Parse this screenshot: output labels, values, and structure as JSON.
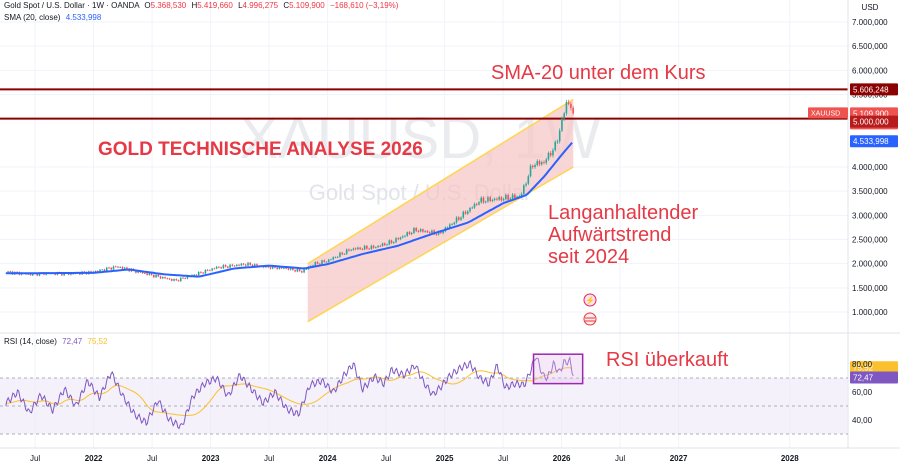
{
  "header": {
    "title": "Gold Spot / U.S. Dollar · 1W · OANDA",
    "o_label": "O",
    "o_value": "5.368,530",
    "h_label": "H",
    "h_value": "5.419,660",
    "l_label": "L",
    "l_value": "4.996,275",
    "c_label": "C",
    "c_value": "5.109,900",
    "change": "−168,610 (−3,19%)",
    "sma_label": "SMA (20, close)",
    "sma_value": "4.533,998",
    "rsi_label": "RSI (14, close)",
    "rsi_value": "72,47",
    "rsi_ma_value": "75,52"
  },
  "watermark": {
    "symbol": "XAUUSD, 1W",
    "name": "Gold Spot / U.S. Dollar"
  },
  "colors": {
    "up": "#26a69a",
    "down": "#ef5350",
    "sma": "#2962ff",
    "rsi": "#7e57c2",
    "rsi_ma": "#fbc02d",
    "channel_fill": "#f7c5c5",
    "channel_line": "#ffd54f",
    "level_line": "#8b0000",
    "annotation": "#e53945"
  },
  "chart_data": {
    "type": "candlestick",
    "currency": "USD",
    "x_ticks": [
      "Jul",
      "2022",
      "Jul",
      "2023",
      "Jul",
      "2024",
      "Jul",
      "2025",
      "Jul",
      "2026",
      "Jul",
      "2027",
      "2028"
    ],
    "y_ticks": [
      "7.000,000",
      "6.500,000",
      "6.000,000",
      "5.500,000",
      "4.000,000",
      "3.500,000",
      "3.000,000",
      "2.500,000",
      "2.000,000",
      "1.500,000",
      "1.000,000"
    ],
    "ylim": [
      500,
      7600
    ],
    "price_anchors": [
      [
        2021.25,
        1830
      ],
      [
        2021.45,
        1780
      ],
      [
        2021.6,
        1800
      ],
      [
        2021.8,
        1790
      ],
      [
        2022.0,
        1830
      ],
      [
        2022.2,
        1940
      ],
      [
        2022.35,
        1850
      ],
      [
        2022.5,
        1760
      ],
      [
        2022.7,
        1650
      ],
      [
        2022.9,
        1800
      ],
      [
        2023.05,
        1920
      ],
      [
        2023.3,
        1990
      ],
      [
        2023.45,
        1940
      ],
      [
        2023.65,
        1900
      ],
      [
        2023.78,
        1840
      ],
      [
        2023.88,
        1990
      ],
      [
        2024.0,
        2060
      ],
      [
        2024.2,
        2300
      ],
      [
        2024.4,
        2340
      ],
      [
        2024.55,
        2450
      ],
      [
        2024.75,
        2700
      ],
      [
        2024.95,
        2620
      ],
      [
        2025.1,
        2900
      ],
      [
        2025.3,
        3300
      ],
      [
        2025.5,
        3350
      ],
      [
        2025.65,
        3400
      ],
      [
        2025.75,
        4050
      ],
      [
        2025.85,
        4100
      ],
      [
        2025.95,
        4450
      ],
      [
        2026.05,
        5400
      ],
      [
        2026.1,
        5110
      ]
    ],
    "sma_anchors": [
      [
        2021.25,
        1800
      ],
      [
        2022.0,
        1810
      ],
      [
        2022.3,
        1880
      ],
      [
        2022.6,
        1780
      ],
      [
        2022.9,
        1730
      ],
      [
        2023.2,
        1900
      ],
      [
        2023.5,
        1960
      ],
      [
        2023.8,
        1900
      ],
      [
        2024.0,
        1990
      ],
      [
        2024.3,
        2200
      ],
      [
        2024.6,
        2370
      ],
      [
        2024.9,
        2620
      ],
      [
        2025.2,
        2850
      ],
      [
        2025.5,
        3250
      ],
      [
        2025.7,
        3420
      ],
      [
        2025.85,
        3800
      ],
      [
        2026.0,
        4250
      ],
      [
        2026.1,
        4534
      ]
    ],
    "levels": [
      {
        "label": "5.606,248",
        "value": 5606.248
      },
      {
        "label": "5.000,000",
        "value": 5000
      }
    ],
    "last_price": {
      "symbol": "XAUUSD",
      "label": "5.109,900",
      "countdown": "3d 6h",
      "value": 5109.9
    },
    "sma_last": {
      "label": "4.533,998",
      "value": 4533.998
    },
    "channel": {
      "x_start": 2023.83,
      "x_end": 2026.1,
      "bottom_start": 800,
      "bottom_end": 4000,
      "top_start": 2000,
      "top_end": 5400
    },
    "rsi": {
      "y_ticks": [
        "80,00",
        "60,00",
        "40,00"
      ],
      "ylim": [
        30,
        88
      ],
      "bands": [
        70,
        50,
        30
      ],
      "last": "72,47",
      "ma_last": "75,52",
      "anchors": [
        [
          2021.25,
          52
        ],
        [
          2021.35,
          60
        ],
        [
          2021.45,
          45
        ],
        [
          2021.55,
          58
        ],
        [
          2021.65,
          47
        ],
        [
          2021.75,
          62
        ],
        [
          2021.85,
          50
        ],
        [
          2021.95,
          68
        ],
        [
          2022.05,
          56
        ],
        [
          2022.15,
          74
        ],
        [
          2022.25,
          57
        ],
        [
          2022.35,
          44
        ],
        [
          2022.45,
          38
        ],
        [
          2022.55,
          54
        ],
        [
          2022.65,
          40
        ],
        [
          2022.75,
          35
        ],
        [
          2022.85,
          57
        ],
        [
          2022.95,
          66
        ],
        [
          2023.05,
          70
        ],
        [
          2023.15,
          57
        ],
        [
          2023.25,
          72
        ],
        [
          2023.35,
          62
        ],
        [
          2023.45,
          52
        ],
        [
          2023.55,
          60
        ],
        [
          2023.65,
          48
        ],
        [
          2023.75,
          44
        ],
        [
          2023.85,
          65
        ],
        [
          2023.95,
          68
        ],
        [
          2024.05,
          60
        ],
        [
          2024.15,
          73
        ],
        [
          2024.22,
          80
        ],
        [
          2024.3,
          62
        ],
        [
          2024.4,
          71
        ],
        [
          2024.48,
          66
        ],
        [
          2024.55,
          76
        ],
        [
          2024.65,
          72
        ],
        [
          2024.75,
          79
        ],
        [
          2024.82,
          67
        ],
        [
          2024.9,
          58
        ],
        [
          2024.97,
          64
        ],
        [
          2025.05,
          72
        ],
        [
          2025.15,
          78
        ],
        [
          2025.22,
          80
        ],
        [
          2025.3,
          70
        ],
        [
          2025.38,
          66
        ],
        [
          2025.45,
          79
        ],
        [
          2025.52,
          63
        ],
        [
          2025.6,
          66
        ],
        [
          2025.68,
          65
        ],
        [
          2025.72,
          72
        ],
        [
          2025.78,
          86
        ],
        [
          2025.84,
          72
        ],
        [
          2025.88,
          70
        ],
        [
          2025.93,
          80
        ],
        [
          2025.98,
          74
        ],
        [
          2026.02,
          81
        ],
        [
          2026.07,
          82
        ],
        [
          2026.1,
          72.47
        ]
      ]
    },
    "annotations": {
      "title": "GOLD TECHNISCHE ANALYSE 2026",
      "sma_note": "SMA-20 unter dem Kurs",
      "trend_lines": [
        "Langanhaltender",
        "Aufwärtstrend",
        "seit 2024"
      ],
      "rsi_note": "RSI überkauft"
    }
  }
}
